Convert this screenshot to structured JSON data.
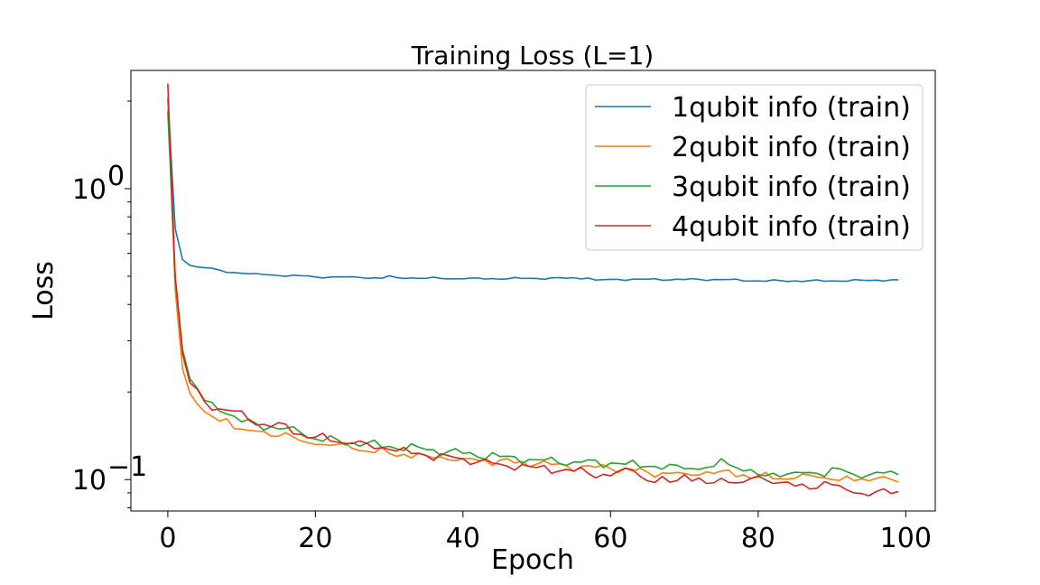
{
  "chart_data": {
    "type": "line",
    "title": "Training Loss (L=1)",
    "xlabel": "Epoch",
    "ylabel": "Loss",
    "xlim": [
      -5,
      104
    ],
    "ylim": [
      0.078,
      2.55
    ],
    "yscale": "log",
    "grid": false,
    "legend_position": "top-right",
    "x_ticks": [
      0,
      20,
      40,
      60,
      80,
      100
    ],
    "x_tick_labels": [
      "0",
      "20",
      "40",
      "60",
      "80",
      "100"
    ],
    "y_ticks": [
      1,
      0.1
    ],
    "y_tick_labels": [
      {
        "base": "10",
        "exp": "0"
      },
      {
        "base": "10",
        "exp": "−1"
      }
    ],
    "y_minor_ticks": [
      0.08,
      0.09,
      0.2,
      0.3,
      0.4,
      0.5,
      0.6,
      0.7,
      0.8,
      0.9,
      2
    ],
    "series": [
      {
        "name": "1qubit info (train)",
        "color": "#1f77b4",
        "key_x": [
          0,
          1,
          2,
          3,
          5,
          7,
          8,
          10,
          14,
          18,
          20,
          25,
          29,
          30,
          31,
          40,
          57,
          58,
          60,
          75,
          80,
          90,
          99
        ],
        "key_y": [
          2.05,
          0.73,
          0.57,
          0.545,
          0.535,
          0.525,
          0.515,
          0.512,
          0.505,
          0.502,
          0.497,
          0.498,
          0.492,
          0.502,
          0.495,
          0.49,
          0.493,
          0.485,
          0.488,
          0.487,
          0.482,
          0.482,
          0.486
        ]
      },
      {
        "name": "2qubit info (train)",
        "color": "#ff7f0e",
        "key_x": [
          0,
          1,
          2,
          3,
          5,
          7,
          8,
          10,
          14,
          16,
          18,
          20,
          22,
          25,
          30,
          35,
          40,
          50,
          60,
          65,
          70,
          75,
          80,
          85,
          88,
          90,
          93,
          96,
          99
        ],
        "key_y": [
          2.0,
          0.45,
          0.24,
          0.198,
          0.171,
          0.159,
          0.162,
          0.149,
          0.141,
          0.145,
          0.136,
          0.132,
          0.131,
          0.128,
          0.123,
          0.121,
          0.118,
          0.113,
          0.109,
          0.106,
          0.105,
          0.107,
          0.102,
          0.101,
          0.102,
          0.1,
          0.099,
          0.101,
          0.098
        ]
      },
      {
        "name": "3qubit info (train)",
        "color": "#2ca02c",
        "key_x": [
          0,
          1,
          2,
          3,
          5,
          7,
          8,
          10,
          14,
          18,
          20,
          25,
          30,
          35,
          40,
          45,
          50,
          55,
          60,
          65,
          70,
          74,
          75,
          78,
          80,
          85,
          88,
          91,
          93,
          96,
          99
        ],
        "key_y": [
          1.85,
          0.5,
          0.28,
          0.222,
          0.187,
          0.172,
          0.168,
          0.158,
          0.152,
          0.145,
          0.138,
          0.134,
          0.13,
          0.127,
          0.123,
          0.12,
          0.117,
          0.115,
          0.114,
          0.111,
          0.109,
          0.111,
          0.118,
          0.107,
          0.104,
          0.106,
          0.105,
          0.109,
          0.104,
          0.106,
          0.104
        ]
      },
      {
        "name": "4qubit info (train)",
        "color": "#d62728",
        "key_x": [
          0,
          1,
          2,
          3,
          5,
          7,
          9,
          11,
          14,
          15,
          18,
          20,
          25,
          30,
          35,
          40,
          45,
          50,
          55,
          60,
          63,
          65,
          68,
          70,
          73,
          75,
          78,
          80,
          82,
          85,
          90,
          93,
          95,
          97,
          99
        ],
        "key_y": [
          2.3,
          0.5,
          0.27,
          0.215,
          0.185,
          0.175,
          0.172,
          0.16,
          0.152,
          0.157,
          0.143,
          0.14,
          0.133,
          0.127,
          0.121,
          0.118,
          0.113,
          0.11,
          0.107,
          0.103,
          0.108,
          0.099,
          0.098,
          0.104,
          0.097,
          0.101,
          0.098,
          0.103,
          0.097,
          0.095,
          0.096,
          0.09,
          0.088,
          0.093,
          0.091
        ]
      }
    ]
  }
}
